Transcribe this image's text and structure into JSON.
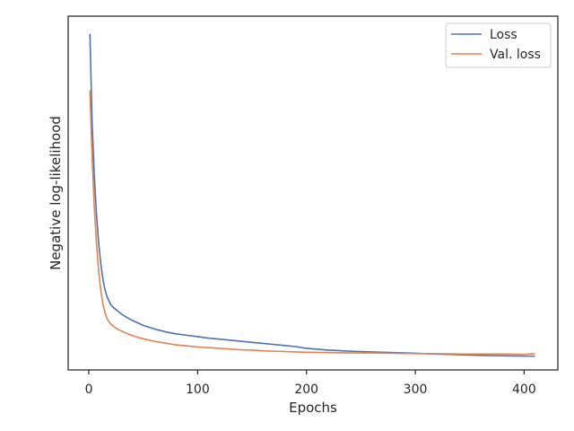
{
  "chart_data": {
    "type": "line",
    "xlabel": "Epochs",
    "ylabel": "Negative log-likelihood",
    "xlim": [
      -19,
      431
    ],
    "ylim": [
      0,
      100
    ],
    "xticks": [
      0,
      100,
      200,
      300,
      400
    ],
    "legend": "top-right",
    "grid": false,
    "y_tick_labels_shown": false,
    "series": [
      {
        "name": "Loss",
        "color": "#4c72b0",
        "x": [
          1,
          3,
          5,
          7,
          9,
          11,
          13,
          15,
          17,
          20,
          23,
          26,
          30,
          35,
          40,
          45,
          50,
          60,
          70,
          80,
          90,
          100,
          110,
          120,
          130,
          140,
          150,
          160,
          170,
          180,
          190,
          200,
          220,
          240,
          260,
          280,
          300,
          320,
          340,
          360,
          380,
          400,
          410
        ],
        "y": [
          95,
          70,
          55,
          44,
          36,
          30,
          25.5,
          22.5,
          20.5,
          18.5,
          17.5,
          16.8,
          15.8,
          14.8,
          14,
          13.3,
          12.6,
          11.6,
          10.8,
          10.2,
          9.8,
          9.4,
          9,
          8.7,
          8.4,
          8.1,
          7.8,
          7.5,
          7.2,
          6.9,
          6.6,
          6.1,
          5.6,
          5.3,
          5.1,
          4.9,
          4.7,
          4.5,
          4.3,
          4.1,
          4,
          3.9,
          3.9
        ]
      },
      {
        "name": "Val. loss",
        "color": "#dd8452",
        "x": [
          1,
          3,
          5,
          7,
          9,
          11,
          13,
          15,
          17,
          20,
          23,
          26,
          30,
          35,
          40,
          45,
          50,
          60,
          70,
          80,
          90,
          100,
          110,
          120,
          130,
          140,
          150,
          160,
          170,
          180,
          190,
          200,
          220,
          240,
          260,
          280,
          300,
          320,
          340,
          360,
          380,
          400,
          410
        ],
        "y": [
          79,
          60,
          46,
          36,
          28,
          22.5,
          18.5,
          16,
          14.3,
          13,
          12.2,
          11.6,
          11,
          10.3,
          9.7,
          9.2,
          8.8,
          8.1,
          7.6,
          7.1,
          6.8,
          6.5,
          6.3,
          6.1,
          5.9,
          5.7,
          5.6,
          5.4,
          5.3,
          5.2,
          5.1,
          5,
          4.9,
          4.8,
          4.8,
          4.7,
          4.6,
          4.6,
          4.5,
          4.5,
          4.5,
          4.4,
          4.6
        ]
      }
    ]
  }
}
